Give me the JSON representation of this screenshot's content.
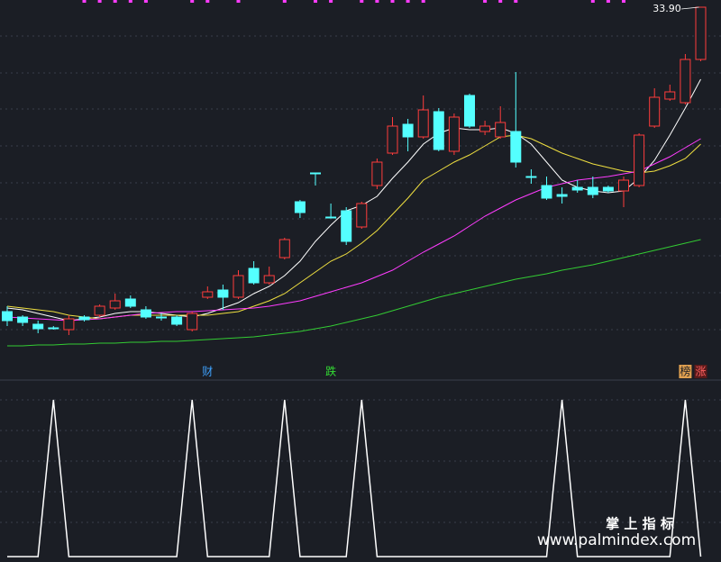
{
  "chart_data": [
    {
      "type": "candlestick",
      "categories": [
        null,
        null,
        null,
        null,
        null,
        null,
        null,
        null,
        null,
        null,
        null,
        null,
        null,
        null,
        null,
        null,
        null,
        null,
        null,
        null,
        null,
        null,
        null,
        null,
        null,
        null,
        null,
        null,
        null,
        null,
        null,
        null,
        null,
        null,
        null,
        null,
        null,
        null,
        null,
        null,
        null,
        null,
        null,
        null,
        null,
        null
      ],
      "open": [
        20.38,
        20.14,
        19.82,
        19.66,
        19.58,
        20.14,
        20.22,
        20.54,
        20.94,
        20.46,
        20.14,
        20.14,
        19.58,
        21.02,
        21.34,
        21.02,
        22.3,
        21.66,
        22.78,
        25.26,
        26.54,
        24.58,
        24.86,
        24.14,
        25.98,
        27.42,
        28.7,
        28.14,
        29.26,
        27.5,
        29.98,
        28.38,
        28.14,
        28.38,
        26.38,
        25.98,
        25.58,
        25.9,
        25.9,
        25.9,
        25.74,
        25.98,
        28.62,
        29.82,
        29.66,
        31.58
      ],
      "high": [
        20.62,
        20.22,
        19.98,
        19.74,
        20.22,
        20.22,
        20.7,
        21.18,
        21.1,
        20.62,
        20.3,
        20.22,
        20.38,
        21.5,
        21.58,
        22.22,
        22.62,
        22.38,
        23.66,
        25.34,
        26.54,
        25.18,
        25.02,
        25.26,
        27.18,
        29.02,
        28.94,
        29.98,
        29.42,
        29.18,
        30.06,
        28.86,
        29.5,
        31.02,
        26.7,
        26.38,
        25.9,
        26.22,
        26.38,
        25.98,
        26.38,
        28.3,
        30.3,
        30.46,
        31.82,
        33.9
      ],
      "low": [
        19.74,
        19.74,
        19.42,
        19.58,
        19.34,
        19.94,
        20.14,
        20.46,
        20.54,
        20.06,
        19.98,
        19.74,
        19.5,
        20.94,
        20.46,
        20.94,
        21.58,
        21.58,
        22.7,
        24.54,
        25.98,
        24.54,
        23.34,
        24.06,
        25.82,
        27.34,
        27.5,
        28.06,
        27.5,
        27.34,
        28.54,
        28.22,
        28.06,
        26.78,
        26.06,
        25.34,
        25.18,
        25.66,
        25.42,
        25.66,
        25.02,
        25.9,
        28.54,
        29.74,
        29.58,
        31.5
      ],
      "close": [
        19.98,
        19.9,
        19.62,
        19.62,
        20.06,
        20.02,
        20.62,
        20.86,
        20.62,
        20.14,
        20.1,
        19.82,
        20.3,
        21.26,
        21.02,
        21.98,
        21.66,
        21.98,
        23.58,
        24.78,
        26.5,
        24.54,
        23.5,
        25.18,
        27.02,
        28.62,
        28.14,
        29.34,
        27.58,
        29.02,
        28.62,
        28.62,
        28.78,
        27.02,
        26.34,
        25.42,
        25.5,
        25.78,
        25.58,
        25.74,
        26.22,
        28.22,
        29.9,
        30.14,
        31.58,
        33.9
      ],
      "high_value_labels": [
        null,
        null,
        null,
        null,
        null,
        null,
        null,
        null,
        null,
        null,
        null,
        null,
        null,
        null,
        null,
        null,
        null,
        null,
        null,
        null,
        null,
        null,
        null,
        null,
        null,
        null,
        null,
        null,
        null,
        null,
        null,
        null,
        null,
        null,
        null,
        null,
        null,
        null,
        null,
        null,
        null,
        null,
        null,
        null,
        null,
        "33.90"
      ],
      "up_color": "#ff3c3c",
      "down_color": "#54ffff",
      "ylim": [
        18.22,
        34.22
      ],
      "series": [
        {
          "color": "#ffffff",
          "values": [
            20.54,
            20.46,
            20.3,
            20.14,
            19.98,
            20.06,
            20.14,
            20.3,
            20.38,
            20.38,
            20.3,
            20.22,
            20.14,
            20.3,
            20.54,
            20.78,
            21.18,
            21.5,
            21.98,
            22.62,
            23.5,
            24.22,
            24.86,
            25.1,
            25.5,
            26.3,
            27.02,
            27.82,
            28.3,
            28.54,
            28.46,
            28.46,
            28.54,
            28.3,
            27.82,
            27.02,
            26.22,
            25.9,
            25.74,
            25.66,
            25.74,
            26.3,
            27.1,
            28.22,
            29.42,
            30.7
          ]
        },
        {
          "color": "#f0e040",
          "values": [
            20.62,
            20.54,
            20.46,
            20.38,
            20.22,
            20.14,
            20.06,
            20.14,
            20.22,
            20.22,
            20.22,
            20.22,
            20.22,
            20.22,
            20.3,
            20.38,
            20.62,
            20.86,
            21.18,
            21.66,
            22.14,
            22.62,
            22.94,
            23.42,
            23.98,
            24.7,
            25.42,
            26.22,
            26.62,
            27.02,
            27.34,
            27.74,
            28.14,
            28.22,
            28.06,
            27.74,
            27.42,
            27.18,
            26.94,
            26.78,
            26.62,
            26.54,
            26.62,
            26.86,
            27.18,
            27.82
          ]
        },
        {
          "color": "#ff3cff",
          "values": [
            20.14,
            20.1,
            20.06,
            20.02,
            19.98,
            20.02,
            20.06,
            20.14,
            20.22,
            20.3,
            20.34,
            20.38,
            20.38,
            20.42,
            20.46,
            20.5,
            20.54,
            20.62,
            20.74,
            20.86,
            21.06,
            21.26,
            21.46,
            21.66,
            21.94,
            22.22,
            22.62,
            23.02,
            23.38,
            23.74,
            24.18,
            24.62,
            24.98,
            25.34,
            25.62,
            25.9,
            26.06,
            26.22,
            26.3,
            26.38,
            26.5,
            26.62,
            26.94,
            27.26,
            27.66,
            28.06
          ]
        },
        {
          "color": "#33cc33",
          "values": [
            18.86,
            18.86,
            18.9,
            18.9,
            18.94,
            18.94,
            18.98,
            18.98,
            19.02,
            19.02,
            19.06,
            19.06,
            19.1,
            19.14,
            19.18,
            19.22,
            19.26,
            19.34,
            19.42,
            19.5,
            19.62,
            19.74,
            19.9,
            20.06,
            20.22,
            20.42,
            20.62,
            20.82,
            21.02,
            21.18,
            21.34,
            21.5,
            21.66,
            21.82,
            21.94,
            22.06,
            22.22,
            22.34,
            22.46,
            22.62,
            22.78,
            22.94,
            23.1,
            23.26,
            23.42,
            23.58
          ]
        }
      ],
      "top_markers": {
        "color": "#ff3cff",
        "indices": [
          5,
          6,
          7,
          8,
          9,
          12,
          13,
          15,
          18,
          20,
          21,
          23,
          24,
          25,
          26,
          27,
          31,
          32,
          33,
          38,
          39,
          40
        ]
      },
      "annotations": [
        {
          "index": 13,
          "text": "财",
          "color": "#3fa3ff",
          "background": "#1b1e25"
        },
        {
          "index": 21,
          "text": "跌",
          "color": "#33dd33",
          "background": "#1b1e25"
        },
        {
          "index": 44,
          "text": "榜",
          "color": "#1b1e25",
          "background": "#e0a050"
        },
        {
          "index": 45,
          "text": "涨",
          "color": "#ff6060",
          "background": "#5a1a1a"
        }
      ]
    },
    {
      "type": "line",
      "values": [
        0,
        0,
        0,
        1,
        0,
        0,
        0,
        0,
        0,
        0,
        0,
        0,
        1,
        0,
        0,
        0,
        0,
        0,
        1,
        0,
        0,
        0,
        0,
        1,
        0,
        0,
        0,
        0,
        0,
        0,
        0,
        0,
        0,
        0,
        0,
        0,
        1,
        0,
        0,
        0,
        0,
        0,
        0,
        0,
        1,
        0
      ],
      "color": "#ffffff",
      "ylim": [
        0,
        1
      ]
    }
  ],
  "watermark": {
    "title": "掌 上 指 标",
    "url": "www.palmindex.com"
  }
}
